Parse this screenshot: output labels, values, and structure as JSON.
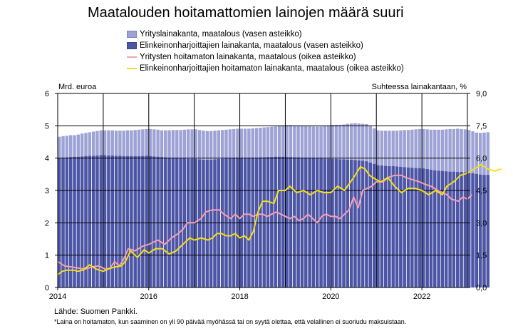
{
  "chart_data": {
    "type": "bar",
    "title": "Maatalouden hoitamattomien lainojen määrä suuri",
    "left_axis_label": "Mrd. euroa",
    "right_axis_label": "Suhteessa lainakantaan, %",
    "left_ylim": [
      0,
      6
    ],
    "right_ylim": [
      0,
      9
    ],
    "left_ticks": [
      "0",
      "1",
      "2",
      "3",
      "4",
      "5",
      "6"
    ],
    "right_ticks": [
      "0,0",
      "1,5",
      "3,0",
      "4,5",
      "6,0",
      "7,5",
      "9,0"
    ],
    "x_range": [
      2014,
      2023
    ],
    "x_ticks": [
      {
        "value": 2014,
        "label": "2014"
      },
      {
        "value": 2016,
        "label": "2016"
      },
      {
        "value": 2018,
        "label": "2018"
      },
      {
        "value": 2020,
        "label": "2020"
      },
      {
        "value": 2022,
        "label": "2022"
      }
    ],
    "grid": true,
    "legend_position": "top",
    "colors": {
      "total": "#9ea3d6",
      "farmer": "#4d55a5",
      "companies_npl": "#f7a0b4",
      "farmer_npl": "#f2e01c",
      "grid": "#000000"
    },
    "series": [
      {
        "name": "Yrityslainakanta, maatalous (vasen asteikko)",
        "kind": "bar",
        "axis": "left",
        "x_start": "2014-01",
        "frequency": "monthly",
        "values": [
          4.66,
          4.68,
          4.69,
          4.71,
          4.71,
          4.73,
          4.76,
          4.78,
          4.8,
          4.82,
          4.84,
          4.86,
          4.86,
          4.86,
          4.86,
          4.85,
          4.85,
          4.85,
          4.86,
          4.86,
          4.87,
          4.88,
          4.89,
          4.9,
          4.9,
          4.89,
          4.88,
          4.86,
          4.86,
          4.86,
          4.87,
          4.87,
          4.87,
          4.88,
          4.89,
          4.89,
          4.89,
          4.87,
          4.85,
          4.84,
          4.84,
          4.85,
          4.86,
          4.87,
          4.88,
          4.89,
          4.9,
          4.91,
          4.91,
          4.91,
          4.91,
          4.92,
          4.93,
          4.94,
          4.95,
          4.96,
          4.97,
          4.98,
          5.0,
          5.01,
          5.02,
          5.02,
          5.01,
          5.0,
          5.0,
          4.99,
          4.99,
          4.98,
          4.98,
          4.98,
          4.99,
          5.01,
          5.03,
          5.03,
          5.03,
          5.04,
          5.06,
          5.07,
          5.08,
          5.07,
          5.06,
          5.05,
          4.99,
          4.92,
          4.86,
          4.85,
          4.85,
          4.85,
          4.85,
          4.85,
          4.86,
          4.87,
          4.87,
          4.88,
          4.89,
          4.9,
          4.9,
          4.89,
          4.88,
          4.88,
          4.88,
          4.88,
          4.89,
          4.9,
          4.9,
          4.91,
          4.9,
          4.89,
          4.87,
          4.83,
          4.79,
          4.78,
          4.79,
          4.8
        ]
      },
      {
        "name": "Elinkeinonharjoittajien lainakanta, maatalous (vasen asteikko)",
        "kind": "bar",
        "axis": "left",
        "x_start": "2014-01",
        "frequency": "monthly",
        "values": [
          4.0,
          4.01,
          4.02,
          4.03,
          4.04,
          4.04,
          4.05,
          4.06,
          4.07,
          4.07,
          4.08,
          4.09,
          4.09,
          4.08,
          4.08,
          4.07,
          4.07,
          4.06,
          4.06,
          4.06,
          4.06,
          4.06,
          4.06,
          4.07,
          4.06,
          4.05,
          4.04,
          4.03,
          4.02,
          4.01,
          4.0,
          4.0,
          3.99,
          3.99,
          3.98,
          3.98,
          3.97,
          3.96,
          3.95,
          3.95,
          3.95,
          3.96,
          3.97,
          3.98,
          3.99,
          4.0,
          4.01,
          4.01,
          4.0,
          4.0,
          4.0,
          4.01,
          4.01,
          4.02,
          4.02,
          4.03,
          4.03,
          4.04,
          4.04,
          4.04,
          4.03,
          4.03,
          4.02,
          4.02,
          4.01,
          4.01,
          4.0,
          4.0,
          3.99,
          3.99,
          3.98,
          3.98,
          3.97,
          3.97,
          3.96,
          3.96,
          3.95,
          3.95,
          3.94,
          3.93,
          3.92,
          3.9,
          3.86,
          3.82,
          3.78,
          3.77,
          3.76,
          3.75,
          3.75,
          3.74,
          3.73,
          3.72,
          3.71,
          3.7,
          3.69,
          3.69,
          3.68,
          3.66,
          3.64,
          3.62,
          3.61,
          3.6,
          3.59,
          3.58,
          3.58,
          3.57,
          3.57,
          3.56,
          3.55,
          3.53,
          3.51,
          3.49,
          3.48,
          3.48
        ]
      },
      {
        "name": "Yritysten hoitamaton lainakanta, maatalous (oikea asteikko)",
        "kind": "line",
        "axis": "right",
        "points": [
          [
            2014.0,
            1.2
          ],
          [
            2014.15,
            1.0
          ],
          [
            2014.3,
            0.95
          ],
          [
            2014.45,
            0.9
          ],
          [
            2014.6,
            0.85
          ],
          [
            2014.75,
            0.95
          ],
          [
            2014.9,
            1.0
          ],
          [
            2015.05,
            0.85
          ],
          [
            2015.15,
            0.9
          ],
          [
            2015.25,
            1.2
          ],
          [
            2015.35,
            1.0
          ],
          [
            2015.45,
            1.3
          ],
          [
            2015.55,
            1.8
          ],
          [
            2015.7,
            1.7
          ],
          [
            2015.85,
            1.9
          ],
          [
            2016.0,
            2.0
          ],
          [
            2016.2,
            2.2
          ],
          [
            2016.35,
            2.0
          ],
          [
            2016.5,
            2.3
          ],
          [
            2016.65,
            2.5
          ],
          [
            2016.75,
            2.7
          ],
          [
            2016.85,
            3.0
          ],
          [
            2017.0,
            3.0
          ],
          [
            2017.15,
            3.2
          ],
          [
            2017.25,
            3.5
          ],
          [
            2017.4,
            3.6
          ],
          [
            2017.55,
            3.6
          ],
          [
            2017.65,
            3.4
          ],
          [
            2017.8,
            3.2
          ],
          [
            2017.9,
            3.4
          ],
          [
            2018.0,
            3.2
          ],
          [
            2018.1,
            3.4
          ],
          [
            2018.2,
            3.4
          ],
          [
            2018.3,
            3.3
          ],
          [
            2018.4,
            3.4
          ],
          [
            2018.5,
            3.4
          ],
          [
            2018.6,
            3.3
          ],
          [
            2018.7,
            3.4
          ],
          [
            2018.8,
            3.5
          ],
          [
            2018.9,
            3.4
          ],
          [
            2019.0,
            3.3
          ],
          [
            2019.1,
            3.2
          ],
          [
            2019.2,
            3.3
          ],
          [
            2019.3,
            3.1
          ],
          [
            2019.4,
            3.2
          ],
          [
            2019.5,
            3.4
          ],
          [
            2019.6,
            3.2
          ],
          [
            2019.7,
            3.0
          ],
          [
            2019.8,
            3.3
          ],
          [
            2019.9,
            3.4
          ],
          [
            2020.0,
            3.3
          ],
          [
            2020.1,
            3.3
          ],
          [
            2020.2,
            3.2
          ],
          [
            2020.3,
            3.4
          ],
          [
            2020.4,
            3.6
          ],
          [
            2020.5,
            4.2
          ],
          [
            2020.6,
            3.7
          ],
          [
            2020.7,
            4.5
          ],
          [
            2020.8,
            4.6
          ],
          [
            2020.9,
            4.7
          ],
          [
            2021.0,
            4.9
          ],
          [
            2021.15,
            4.9
          ],
          [
            2021.25,
            5.1
          ],
          [
            2021.4,
            5.2
          ],
          [
            2021.55,
            5.2
          ],
          [
            2021.65,
            5.1
          ],
          [
            2021.8,
            5.0
          ],
          [
            2021.95,
            4.9
          ],
          [
            2022.05,
            4.8
          ],
          [
            2022.2,
            4.7
          ],
          [
            2022.35,
            4.5
          ],
          [
            2022.55,
            4.3
          ],
          [
            2022.65,
            4.1
          ],
          [
            2022.8,
            4.0
          ],
          [
            2022.9,
            4.2
          ],
          [
            2023.0,
            4.1
          ],
          [
            2023.1,
            4.3
          ]
        ]
      },
      {
        "name": "Elinkeinonharjoittajien hoitamaton lainakanta, maatalous (oikea asteikko)",
        "kind": "line",
        "axis": "right",
        "points": [
          [
            2014.0,
            0.6
          ],
          [
            2014.1,
            0.75
          ],
          [
            2014.2,
            0.8
          ],
          [
            2014.35,
            0.8
          ],
          [
            2014.45,
            0.75
          ],
          [
            2014.55,
            0.8
          ],
          [
            2014.7,
            1.05
          ],
          [
            2014.85,
            0.85
          ],
          [
            2015.0,
            0.75
          ],
          [
            2015.1,
            0.85
          ],
          [
            2015.25,
            0.95
          ],
          [
            2015.4,
            1.0
          ],
          [
            2015.5,
            1.25
          ],
          [
            2015.6,
            1.7
          ],
          [
            2015.75,
            1.4
          ],
          [
            2015.9,
            1.75
          ],
          [
            2016.0,
            1.6
          ],
          [
            2016.15,
            1.8
          ],
          [
            2016.3,
            1.8
          ],
          [
            2016.45,
            1.55
          ],
          [
            2016.6,
            1.7
          ],
          [
            2016.75,
            2.0
          ],
          [
            2016.9,
            2.3
          ],
          [
            2017.0,
            2.2
          ],
          [
            2017.15,
            2.3
          ],
          [
            2017.3,
            2.2
          ],
          [
            2017.4,
            2.3
          ],
          [
            2017.5,
            2.5
          ],
          [
            2017.6,
            2.5
          ],
          [
            2017.7,
            2.4
          ],
          [
            2017.8,
            2.4
          ],
          [
            2017.9,
            2.5
          ],
          [
            2018.0,
            2.3
          ],
          [
            2018.1,
            2.4
          ],
          [
            2018.2,
            2.2
          ],
          [
            2018.3,
            2.6
          ],
          [
            2018.4,
            3.5
          ],
          [
            2018.5,
            4.0
          ],
          [
            2018.6,
            4.0
          ],
          [
            2018.75,
            3.9
          ],
          [
            2018.85,
            4.5
          ],
          [
            2019.0,
            4.5
          ],
          [
            2019.1,
            4.7
          ],
          [
            2019.25,
            4.4
          ],
          [
            2019.4,
            4.5
          ],
          [
            2019.55,
            4.3
          ],
          [
            2019.7,
            4.5
          ],
          [
            2019.85,
            4.4
          ],
          [
            2020.0,
            4.4
          ],
          [
            2020.15,
            4.7
          ],
          [
            2020.3,
            4.5
          ],
          [
            2020.4,
            4.8
          ],
          [
            2020.5,
            5.1
          ],
          [
            2020.65,
            5.6
          ],
          [
            2020.75,
            5.5
          ],
          [
            2020.85,
            5.2
          ],
          [
            2021.0,
            5.0
          ],
          [
            2021.1,
            4.9
          ],
          [
            2021.25,
            5.1
          ],
          [
            2021.4,
            4.7
          ],
          [
            2021.55,
            4.4
          ],
          [
            2021.7,
            4.6
          ],
          [
            2021.85,
            4.6
          ],
          [
            2022.0,
            4.5
          ],
          [
            2022.15,
            4.3
          ],
          [
            2022.3,
            4.5
          ],
          [
            2022.45,
            4.3
          ],
          [
            2022.55,
            4.7
          ],
          [
            2022.7,
            4.9
          ],
          [
            2022.85,
            5.2
          ],
          [
            2023.0,
            5.3
          ],
          [
            2023.15,
            5.5
          ],
          [
            2023.3,
            5.7
          ],
          [
            2023.45,
            5.5
          ],
          [
            2023.6,
            5.4
          ],
          [
            2023.75,
            5.5
          ]
        ]
      }
    ]
  },
  "source": "Lähde: Suomen Pankki.",
  "footnote": "*Laina on hoitamaton, kun saaminen on yli 90 päivää myöhässä tai on syytä olettaa, että velallinen ei suoriudu maksuistaan."
}
